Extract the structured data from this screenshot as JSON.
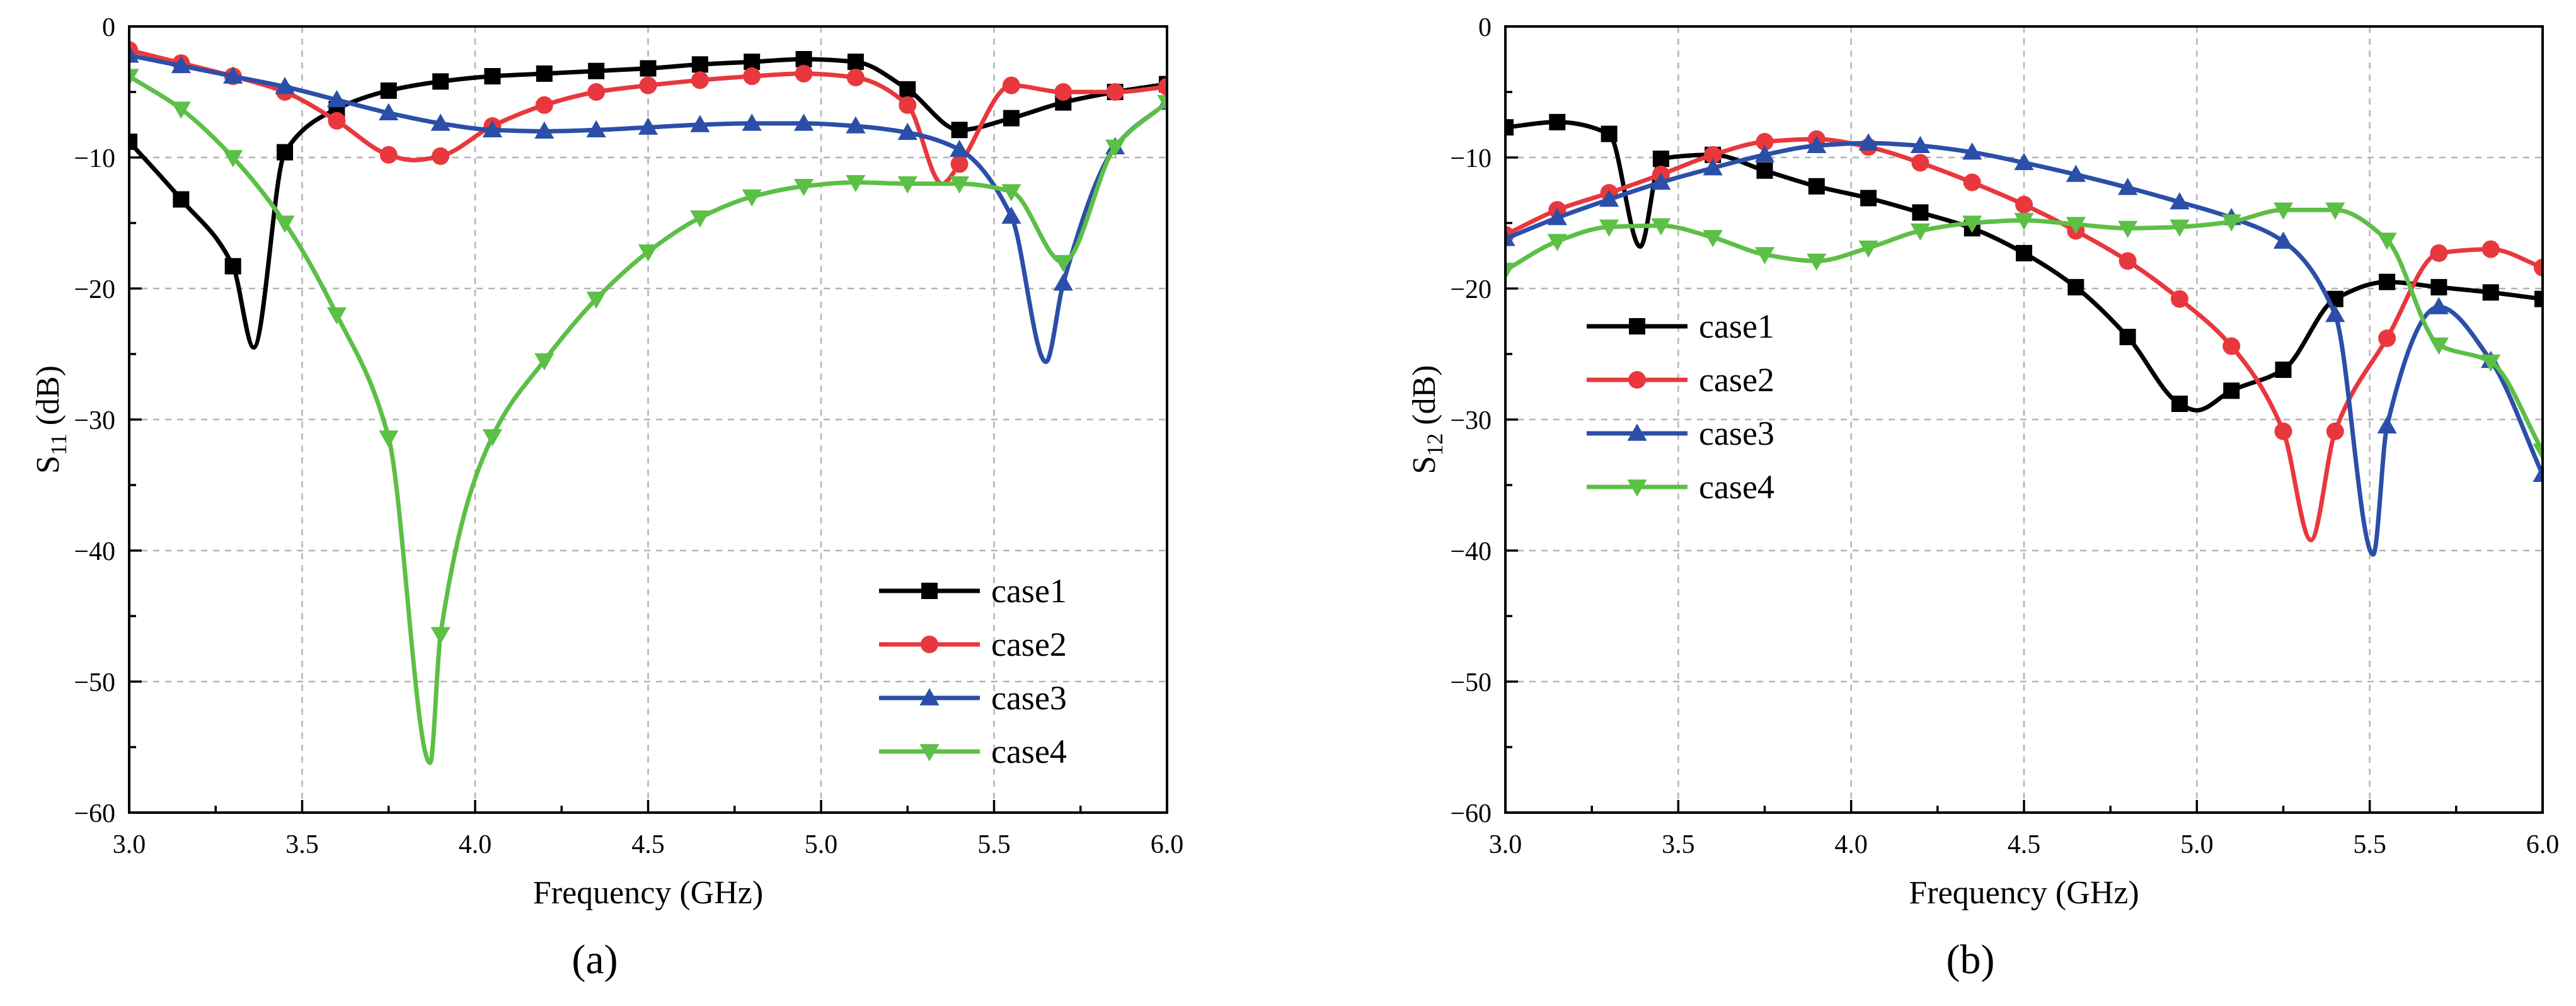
{
  "panels": [
    {
      "label": "(a)",
      "chart_data": {
        "type": "line",
        "title": "",
        "xlabel": "Frequency (GHz)",
        "ylabel_main": "S",
        "ylabel_sub": "11",
        "ylabel_unit": " (dB)",
        "xlim": [
          3.0,
          6.0
        ],
        "ylim": [
          -60,
          0
        ],
        "xticks": [
          3.0,
          3.5,
          4.0,
          4.5,
          5.0,
          5.5,
          6.0
        ],
        "xtick_labels": [
          "3.0",
          "3.5",
          "4.0",
          "4.5",
          "5.0",
          "5.5",
          "6.0"
        ],
        "yticks": [
          0,
          -10,
          -20,
          -30,
          -40,
          -50,
          -60
        ],
        "ytick_labels": [
          "0",
          "−10",
          "−20",
          "−30",
          "−40",
          "−50",
          "−60"
        ],
        "grid": true,
        "legend_position": "lower-right",
        "series": [
          {
            "name": "case1",
            "color": "#000000",
            "marker": "square",
            "x": [
              3.0,
              3.15,
              3.3,
              3.36,
              3.45,
              3.6,
              3.75,
              3.9,
              4.05,
              4.2,
              4.35,
              4.5,
              4.65,
              4.8,
              4.95,
              5.1,
              5.25,
              5.4,
              5.55,
              5.7,
              5.85,
              6.0
            ],
            "y": [
              -8.8,
              -13.2,
              -18.3,
              -24.5,
              -9.6,
              -6.3,
              -4.9,
              -4.2,
              -3.8,
              -3.6,
              -3.4,
              -3.2,
              -2.9,
              -2.7,
              -2.5,
              -2.7,
              -4.8,
              -7.9,
              -7.0,
              -5.8,
              -5.0,
              -4.4
            ],
            "markers_x": [
              3.0,
              3.15,
              3.3,
              3.45,
              3.6,
              3.75,
              3.9,
              4.05,
              4.2,
              4.35,
              4.5,
              4.65,
              4.8,
              4.95,
              5.1,
              5.25,
              5.4,
              5.55,
              5.7,
              5.85,
              6.0
            ]
          },
          {
            "name": "case2",
            "color": "#e8383d",
            "marker": "circle",
            "x": [
              3.0,
              3.15,
              3.3,
              3.45,
              3.6,
              3.75,
              3.82,
              3.9,
              4.05,
              4.2,
              4.35,
              4.5,
              4.65,
              4.8,
              4.95,
              5.1,
              5.25,
              5.35,
              5.4,
              5.55,
              5.7,
              5.85,
              6.0
            ],
            "y": [
              -1.8,
              -2.8,
              -3.8,
              -5.0,
              -7.2,
              -9.8,
              -10.2,
              -9.9,
              -7.6,
              -6.0,
              -5.0,
              -4.5,
              -4.1,
              -3.8,
              -3.6,
              -3.9,
              -6.0,
              -12.0,
              -10.5,
              -4.5,
              -5.0,
              -5.0,
              -4.6
            ],
            "markers_x": [
              3.0,
              3.15,
              3.3,
              3.45,
              3.6,
              3.75,
              3.9,
              4.05,
              4.2,
              4.35,
              4.5,
              4.65,
              4.8,
              4.95,
              5.1,
              5.25,
              5.4,
              5.55,
              5.7,
              5.85,
              6.0
            ]
          },
          {
            "name": "case3",
            "color": "#2b4fa8",
            "marker": "triangle-up",
            "x": [
              3.0,
              3.15,
              3.3,
              3.45,
              3.6,
              3.75,
              3.9,
              4.05,
              4.2,
              4.35,
              4.5,
              4.65,
              4.8,
              4.95,
              5.1,
              5.25,
              5.4,
              5.55,
              5.65,
              5.7,
              5.85,
              6.0
            ],
            "y": [
              -2.2,
              -3.0,
              -3.8,
              -4.6,
              -5.6,
              -6.6,
              -7.4,
              -7.9,
              -8.0,
              -7.9,
              -7.7,
              -7.5,
              -7.4,
              -7.4,
              -7.6,
              -8.1,
              -9.4,
              -14.5,
              -25.6,
              -19.6,
              -9.2,
              -5.8
            ],
            "markers_x": [
              3.0,
              3.15,
              3.3,
              3.45,
              3.6,
              3.75,
              3.9,
              4.05,
              4.2,
              4.35,
              4.5,
              4.65,
              4.8,
              4.95,
              5.1,
              5.25,
              5.4,
              5.55,
              5.7,
              5.85,
              6.0
            ]
          },
          {
            "name": "case4",
            "color": "#5cbf46",
            "marker": "triangle-down",
            "x": [
              3.0,
              3.15,
              3.3,
              3.45,
              3.6,
              3.75,
              3.87,
              3.9,
              4.05,
              4.2,
              4.35,
              4.5,
              4.65,
              4.8,
              4.95,
              5.1,
              5.25,
              5.4,
              5.55,
              5.7,
              5.85,
              6.0
            ],
            "y": [
              -3.8,
              -6.3,
              -10.0,
              -15.0,
              -22.0,
              -31.4,
              -56.2,
              -46.4,
              -31.3,
              -25.5,
              -20.8,
              -17.2,
              -14.6,
              -13.0,
              -12.2,
              -11.9,
              -12.0,
              -12.0,
              -12.6,
              -18.0,
              -9.2,
              -5.8
            ],
            "markers_x": [
              3.0,
              3.15,
              3.3,
              3.45,
              3.6,
              3.75,
              3.9,
              4.05,
              4.2,
              4.35,
              4.5,
              4.65,
              4.8,
              4.95,
              5.1,
              5.25,
              5.4,
              5.55,
              5.7,
              5.85,
              6.0
            ]
          }
        ]
      }
    },
    {
      "label": "(b)",
      "chart_data": {
        "type": "line",
        "title": "",
        "xlabel": "Frequency (GHz)",
        "ylabel_main": "S",
        "ylabel_sub": "12",
        "ylabel_unit": " (dB)",
        "xlim": [
          3.0,
          6.0
        ],
        "ylim": [
          -60,
          0
        ],
        "xticks": [
          3.0,
          3.5,
          4.0,
          4.5,
          5.0,
          5.5,
          6.0
        ],
        "xtick_labels": [
          "3.0",
          "3.5",
          "4.0",
          "4.5",
          "5.0",
          "5.5",
          "6.0"
        ],
        "yticks": [
          0,
          -10,
          -20,
          -30,
          -40,
          -50,
          -60
        ],
        "ytick_labels": [
          "0",
          "−10",
          "−20",
          "−30",
          "−40",
          "−50",
          "−60"
        ],
        "grid": true,
        "legend_position": "upper-left",
        "series": [
          {
            "name": "case1",
            "color": "#000000",
            "marker": "square",
            "x": [
              3.0,
              3.15,
              3.3,
              3.39,
              3.45,
              3.6,
              3.75,
              3.9,
              4.05,
              4.2,
              4.35,
              4.5,
              4.65,
              4.8,
              4.95,
              5.0,
              5.1,
              5.25,
              5.4,
              5.55,
              5.7,
              5.85,
              6.0
            ],
            "y": [
              -7.7,
              -7.3,
              -8.2,
              -16.8,
              -10.1,
              -9.8,
              -11.0,
              -12.2,
              -13.1,
              -14.2,
              -15.4,
              -17.3,
              -19.9,
              -23.7,
              -28.8,
              -29.3,
              -27.8,
              -26.2,
              -20.8,
              -19.5,
              -19.9,
              -20.3,
              -20.8
            ],
            "markers_x": [
              3.0,
              3.15,
              3.3,
              3.45,
              3.6,
              3.75,
              3.9,
              4.05,
              4.2,
              4.35,
              4.5,
              4.65,
              4.8,
              4.95,
              5.1,
              5.25,
              5.4,
              5.55,
              5.7,
              5.85,
              6.0
            ]
          },
          {
            "name": "case2",
            "color": "#e8383d",
            "marker": "circle",
            "x": [
              3.0,
              3.15,
              3.3,
              3.45,
              3.6,
              3.75,
              3.9,
              4.05,
              4.2,
              4.35,
              4.5,
              4.65,
              4.8,
              4.95,
              5.1,
              5.25,
              5.33,
              5.4,
              5.55,
              5.7,
              5.85,
              6.0
            ],
            "y": [
              -15.9,
              -14.0,
              -12.7,
              -11.3,
              -9.8,
              -8.8,
              -8.6,
              -9.2,
              -10.4,
              -11.9,
              -13.6,
              -15.6,
              -17.9,
              -20.8,
              -24.4,
              -30.9,
              -39.2,
              -30.9,
              -23.8,
              -17.3,
              -17.0,
              -18.4
            ],
            "markers_x": [
              3.0,
              3.15,
              3.3,
              3.45,
              3.6,
              3.75,
              3.9,
              4.05,
              4.2,
              4.35,
              4.5,
              4.65,
              4.8,
              4.95,
              5.1,
              5.25,
              5.4,
              5.55,
              5.7,
              5.85,
              6.0
            ]
          },
          {
            "name": "case3",
            "color": "#2b4fa8",
            "marker": "triangle-up",
            "x": [
              3.0,
              3.15,
              3.3,
              3.45,
              3.6,
              3.75,
              3.9,
              4.05,
              4.2,
              4.35,
              4.5,
              4.65,
              4.8,
              4.95,
              5.1,
              5.25,
              5.4,
              5.51,
              5.55,
              5.7,
              5.85,
              6.0
            ],
            "y": [
              -16.2,
              -14.6,
              -13.2,
              -11.9,
              -10.8,
              -9.8,
              -9.1,
              -8.9,
              -9.1,
              -9.6,
              -10.4,
              -11.3,
              -12.3,
              -13.4,
              -14.6,
              -16.4,
              -22.0,
              -40.3,
              -30.5,
              -21.4,
              -25.5,
              -34.2
            ],
            "markers_x": [
              3.0,
              3.15,
              3.3,
              3.45,
              3.6,
              3.75,
              3.9,
              4.05,
              4.2,
              4.35,
              4.5,
              4.65,
              4.8,
              4.95,
              5.1,
              5.25,
              5.4,
              5.55,
              5.7,
              5.85,
              6.0
            ]
          },
          {
            "name": "case4",
            "color": "#5cbf46",
            "marker": "triangle-down",
            "x": [
              3.0,
              3.15,
              3.3,
              3.45,
              3.6,
              3.75,
              3.9,
              4.05,
              4.2,
              4.35,
              4.5,
              4.65,
              4.8,
              4.95,
              5.1,
              5.25,
              5.4,
              5.55,
              5.7,
              5.85,
              6.0
            ],
            "y": [
              -18.6,
              -16.4,
              -15.3,
              -15.2,
              -16.1,
              -17.4,
              -17.9,
              -16.9,
              -15.6,
              -15.0,
              -14.8,
              -15.1,
              -15.4,
              -15.3,
              -14.9,
              -14.0,
              -14.0,
              -16.3,
              -24.3,
              -25.6,
              -32.4
            ],
            "markers_x": [
              3.0,
              3.15,
              3.3,
              3.45,
              3.6,
              3.75,
              3.9,
              4.05,
              4.2,
              4.35,
              4.5,
              4.65,
              4.8,
              4.95,
              5.1,
              5.25,
              5.4,
              5.55,
              5.7,
              5.85,
              6.0
            ]
          }
        ]
      }
    }
  ]
}
